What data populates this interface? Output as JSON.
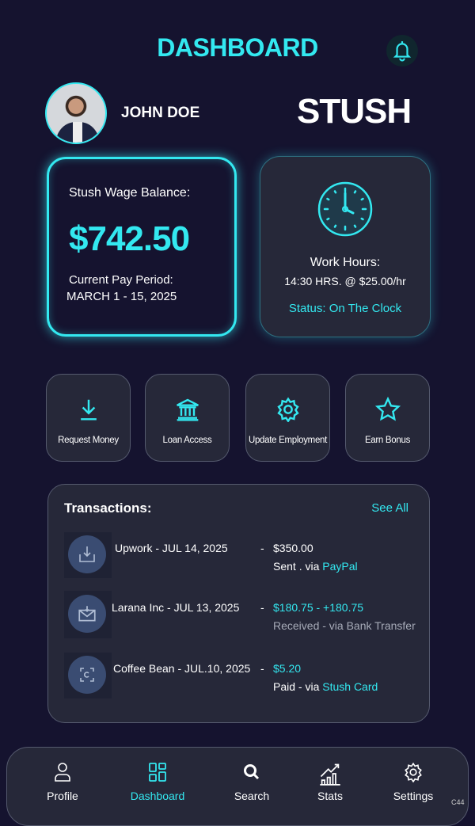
{
  "header": {
    "title": "DASHBOARD",
    "notification_icon": "bell-icon"
  },
  "user": {
    "name": "JOHN DOE",
    "brand": "STUSH"
  },
  "balance_card": {
    "label": "Stush Wage Balance:",
    "amount": "$742.50",
    "period_label": "Current Pay Period:",
    "period": "MARCH 1 - 15, 2025"
  },
  "work_card": {
    "icon": "clock-icon",
    "title": "Work Hours:",
    "rate": "14:30 HRS. @ $25.00/hr",
    "status": "Status: On The Clock"
  },
  "actions": [
    {
      "label": "Request Money",
      "icon": "download-icon"
    },
    {
      "label": "Loan Access",
      "icon": "bank-icon"
    },
    {
      "label": "Update Employment",
      "icon": "gear-icon"
    },
    {
      "label": "Earn Bonus",
      "icon": "star-icon"
    }
  ],
  "transactions": {
    "title": "Transactions:",
    "see_all": "See All",
    "items": [
      {
        "merchant": "Upwork - JUL 14, 2025",
        "sep": "-",
        "amount": "$350.00",
        "status": "Sent . via ",
        "method": "PayPal",
        "icon": "inbox-download-icon"
      },
      {
        "merchant": "Larana Inc  -  JUL 13, 2025",
        "sep": "-",
        "amount": "$180.75  -  +180.75",
        "status": "Received  -  via Bank Transfer",
        "method": "",
        "icon": "mail-icon"
      },
      {
        "merchant": "Coffee Bean - JUL.10, 2025",
        "sep": "-",
        "amount": "$5.20",
        "status": "Paid - via ",
        "method": "Stush Card",
        "icon": "scan-icon"
      }
    ]
  },
  "nav": [
    {
      "label": "Profile",
      "icon": "user-icon"
    },
    {
      "label": "Dashboard",
      "icon": "dashboard-icon",
      "active": true
    },
    {
      "label": "Search",
      "icon": "search-icon"
    },
    {
      "label": "Stats",
      "icon": "stats-icon"
    },
    {
      "label": "Settings",
      "icon": "gear-icon"
    }
  ],
  "footer_code": "C44",
  "colors": {
    "accent": "#33e8f0",
    "background": "#15132f",
    "card": "#262839"
  }
}
